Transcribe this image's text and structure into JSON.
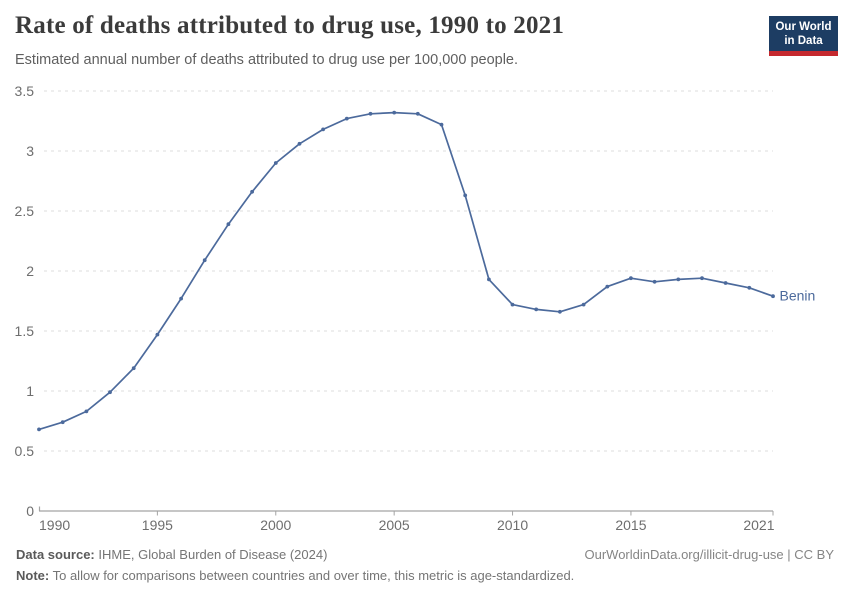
{
  "header": {
    "title": "Rate of deaths attributed to drug use, 1990 to 2021",
    "subtitle": "Estimated annual number of deaths attributed to drug use per 100,000 people.",
    "logo": {
      "line1": "Our World",
      "line2": "in Data"
    }
  },
  "footer": {
    "source_label": "Data source:",
    "source_value": "IHME, Global Burden of Disease (2024)",
    "attribution": "OurWorldinData.org/illicit-drug-use | CC BY",
    "note_label": "Note:",
    "note_value": "To allow for comparisons between countries and over time, this metric is age-standardized."
  },
  "colors": {
    "logo_navy": "#1d3d63",
    "logo_red": "#c5292e",
    "line": "#4c6a9c",
    "grid": "#dcdcdc",
    "axis": "#a3a3a3",
    "tick_label": "#6e6e6e",
    "title": "#3b3b3b",
    "subtitle": "#5f5f5f",
    "footer_text": "#757575"
  },
  "chart_data": {
    "type": "line",
    "title": "Rate of deaths attributed to drug use, 1990 to 2021",
    "xlabel": "",
    "ylabel": "Estimated annual deaths attributed to drug use per 100,000 people",
    "xlim": [
      1990,
      2021
    ],
    "ylim": [
      0,
      3.5
    ],
    "x_ticks": [
      1990,
      1995,
      2000,
      2005,
      2010,
      2015,
      2021
    ],
    "y_ticks": [
      0,
      0.5,
      1,
      1.5,
      2,
      2.5,
      3,
      3.5
    ],
    "grid": "horizontal-dashed",
    "legend_position": "end-of-line-label",
    "end_label": "Benin",
    "x": [
      1990,
      1991,
      1992,
      1993,
      1994,
      1995,
      1996,
      1997,
      1998,
      1999,
      2000,
      2001,
      2002,
      2003,
      2004,
      2005,
      2006,
      2007,
      2008,
      2009,
      2010,
      2011,
      2012,
      2013,
      2014,
      2015,
      2016,
      2017,
      2018,
      2019,
      2020,
      2021
    ],
    "series": [
      {
        "name": "Benin",
        "color": "#4c6a9c",
        "values": [
          0.68,
          0.74,
          0.83,
          0.99,
          1.19,
          1.47,
          1.77,
          2.09,
          2.39,
          2.66,
          2.9,
          3.06,
          3.18,
          3.27,
          3.31,
          3.32,
          3.31,
          3.22,
          2.63,
          1.93,
          1.72,
          1.68,
          1.66,
          1.72,
          1.87,
          1.94,
          1.91,
          1.93,
          1.94,
          1.9,
          1.86,
          1.79
        ]
      }
    ]
  }
}
